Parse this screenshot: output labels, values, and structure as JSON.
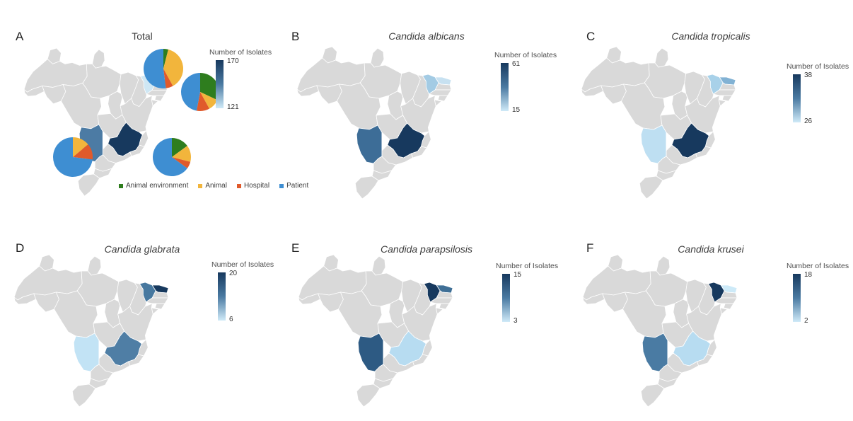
{
  "figure": {
    "background": "#ffffff",
    "colors": {
      "map_base": "#d9d9d9",
      "state_border": "#ffffff",
      "scale_max": "#17395e",
      "scale_mid": "#4a7aa2",
      "scale_min": "#cfeaf8"
    },
    "pie_categories": [
      {
        "label": "Animal environment",
        "color": "#2e7d1e"
      },
      {
        "label": "Animal",
        "color": "#f2b53c"
      },
      {
        "label": "Hospital",
        "color": "#e05a2b"
      },
      {
        "label": "Patient",
        "color": "#3e8ed2"
      }
    ],
    "panels": [
      {
        "label": "A",
        "title": "Total",
        "italic": false,
        "legend_title": "Number of Isolates",
        "legend_max": "170",
        "legend_min": "121",
        "state_colors": {
          "CE": "#cfe7f4",
          "RN": "#6f9cbf",
          "MS": "#4c7ba4",
          "MG": "#17395e"
        },
        "pies": [
          {
            "location": "Ceará",
            "slices": [
              {
                "category": "Animal environment",
                "fraction": 0.04
              },
              {
                "category": "Animal",
                "fraction": 0.38
              },
              {
                "category": "Hospital",
                "fraction": 0.06
              },
              {
                "category": "Patient",
                "fraction": 0.52
              }
            ]
          },
          {
            "location": "Rio Grande do Norte",
            "slices": [
              {
                "category": "Animal environment",
                "fraction": 0.32
              },
              {
                "category": "Animal",
                "fraction": 0.1
              },
              {
                "category": "Hospital",
                "fraction": 0.11
              },
              {
                "category": "Patient",
                "fraction": 0.47
              }
            ]
          },
          {
            "location": "Mato Grosso do Sul",
            "slices": [
              {
                "category": "Animal",
                "fraction": 0.14
              },
              {
                "category": "Hospital",
                "fraction": 0.13
              },
              {
                "category": "Patient",
                "fraction": 0.73
              }
            ]
          },
          {
            "location": "Minas Gerais",
            "slices": [
              {
                "category": "Animal environment",
                "fraction": 0.15
              },
              {
                "category": "Animal",
                "fraction": 0.14
              },
              {
                "category": "Hospital",
                "fraction": 0.06
              },
              {
                "category": "Patient",
                "fraction": 0.65
              }
            ]
          }
        ]
      },
      {
        "label": "B",
        "title": "Candida albicans",
        "italic": true,
        "legend_title": "Number of Isolates",
        "legend_max": "61",
        "legend_min": "15",
        "state_colors": {
          "CE": "#a3cbe4",
          "RN": "#c7e1f1",
          "MS": "#3d6d97",
          "MG": "#17395e"
        }
      },
      {
        "label": "C",
        "title": "Candida tropicalis",
        "italic": true,
        "legend_title": "Number of Isolates",
        "legend_max": "38",
        "legend_min": "26",
        "state_colors": {
          "CE": "#a8d1e9",
          "RN": "#82b2d4",
          "MS": "#bedff2",
          "MG": "#17395e"
        }
      },
      {
        "label": "D",
        "title": "Candida glabrata",
        "italic": true,
        "legend_title": "Number of Isolates",
        "legend_max": "20",
        "legend_min": "6",
        "state_colors": {
          "CE": "#47789f",
          "RN": "#17395e",
          "MS": "#c2e3f5",
          "MG": "#4f7ea5"
        }
      },
      {
        "label": "E",
        "title": "Candida parapsilosis",
        "italic": true,
        "legend_title": "Number of Isolates",
        "legend_max": "15",
        "legend_min": "3",
        "state_colors": {
          "CE": "#17395e",
          "RN": "#3f6f96",
          "MS": "#2d5a83",
          "MG": "#b7dcf1"
        }
      },
      {
        "label": "F",
        "title": "Candida krusei",
        "italic": true,
        "legend_title": "Number of Isolates",
        "legend_max": "18",
        "legend_min": "2",
        "state_colors": {
          "CE": "#17395e",
          "RN": "#cdeaf8",
          "MS": "#4a7ba3",
          "MG": "#b7dcf1"
        }
      }
    ]
  },
  "chart_data": [
    {
      "type": "choropleth",
      "panel": "A",
      "title": "Total",
      "region": "Brazil states",
      "colorbar_label": "Number of Isolates",
      "colorbar_range": [
        121,
        170
      ],
      "states": [
        {
          "id": "CE",
          "name": "Ceará",
          "value": 121,
          "value_estimated": false
        },
        {
          "id": "RN",
          "name": "Rio Grande do Norte",
          "value": 140,
          "value_estimated": true
        },
        {
          "id": "MS",
          "name": "Mato Grosso do Sul",
          "value": 150,
          "value_estimated": true
        },
        {
          "id": "MG",
          "name": "Minas Gerais",
          "value": 170,
          "value_estimated": false
        }
      ],
      "overlay_pies": {
        "legend": [
          "Animal environment",
          "Animal",
          "Hospital",
          "Patient"
        ],
        "pies": [
          {
            "location": "Ceará",
            "fractions": [
              0.04,
              0.38,
              0.06,
              0.52
            ]
          },
          {
            "location": "Rio Grande do Norte",
            "fractions": [
              0.32,
              0.1,
              0.11,
              0.47
            ]
          },
          {
            "location": "Mato Grosso do Sul",
            "fractions": [
              0.0,
              0.14,
              0.13,
              0.73
            ]
          },
          {
            "location": "Minas Gerais",
            "fractions": [
              0.15,
              0.14,
              0.06,
              0.65
            ]
          }
        ]
      }
    },
    {
      "type": "choropleth",
      "panel": "B",
      "title": "Candida albicans",
      "region": "Brazil states",
      "colorbar_label": "Number of Isolates",
      "colorbar_range": [
        15,
        61
      ],
      "states": [
        {
          "id": "CE",
          "name": "Ceará",
          "value": 28,
          "value_estimated": true
        },
        {
          "id": "RN",
          "name": "Rio Grande do Norte",
          "value": 15,
          "value_estimated": false
        },
        {
          "id": "MS",
          "name": "Mato Grosso do Sul",
          "value": 42,
          "value_estimated": true
        },
        {
          "id": "MG",
          "name": "Minas Gerais",
          "value": 61,
          "value_estimated": false
        }
      ]
    },
    {
      "type": "choropleth",
      "panel": "C",
      "title": "Candida tropicalis",
      "region": "Brazil states",
      "colorbar_label": "Number of Isolates",
      "colorbar_range": [
        26,
        38
      ],
      "states": [
        {
          "id": "CE",
          "name": "Ceará",
          "value": 30,
          "value_estimated": true
        },
        {
          "id": "RN",
          "name": "Rio Grande do Norte",
          "value": 32,
          "value_estimated": true
        },
        {
          "id": "MS",
          "name": "Mato Grosso do Sul",
          "value": 26,
          "value_estimated": false
        },
        {
          "id": "MG",
          "name": "Minas Gerais",
          "value": 38,
          "value_estimated": false
        }
      ]
    },
    {
      "type": "choropleth",
      "panel": "D",
      "title": "Candida glabrata",
      "region": "Brazil states",
      "colorbar_label": "Number of Isolates",
      "colorbar_range": [
        6,
        20
      ],
      "states": [
        {
          "id": "CE",
          "name": "Ceará",
          "value": 14,
          "value_estimated": true
        },
        {
          "id": "RN",
          "name": "Rio Grande do Norte",
          "value": 20,
          "value_estimated": false
        },
        {
          "id": "MS",
          "name": "Mato Grosso do Sul",
          "value": 6,
          "value_estimated": false
        },
        {
          "id": "MG",
          "name": "Minas Gerais",
          "value": 13,
          "value_estimated": true
        }
      ]
    },
    {
      "type": "choropleth",
      "panel": "E",
      "title": "Candida parapsilosis",
      "region": "Brazil states",
      "colorbar_label": "Number of Isolates",
      "colorbar_range": [
        3,
        15
      ],
      "states": [
        {
          "id": "CE",
          "name": "Ceará",
          "value": 15,
          "value_estimated": false
        },
        {
          "id": "RN",
          "name": "Rio Grande do Norte",
          "value": 11,
          "value_estimated": true
        },
        {
          "id": "MS",
          "name": "Mato Grosso do Sul",
          "value": 13,
          "value_estimated": true
        },
        {
          "id": "MG",
          "name": "Minas Gerais",
          "value": 3,
          "value_estimated": false
        }
      ]
    },
    {
      "type": "choropleth",
      "panel": "F",
      "title": "Candida krusei",
      "region": "Brazil states",
      "colorbar_label": "Number of Isolates",
      "colorbar_range": [
        2,
        18
      ],
      "states": [
        {
          "id": "CE",
          "name": "Ceará",
          "value": 18,
          "value_estimated": false
        },
        {
          "id": "RN",
          "name": "Rio Grande do Norte",
          "value": 2,
          "value_estimated": false
        },
        {
          "id": "MS",
          "name": "Mato Grosso do Sul",
          "value": 12,
          "value_estimated": true
        },
        {
          "id": "MG",
          "name": "Minas Gerais",
          "value": 6,
          "value_estimated": true
        }
      ]
    }
  ]
}
